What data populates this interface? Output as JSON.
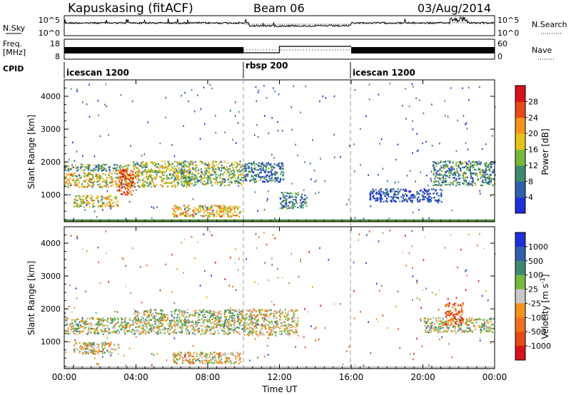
{
  "header": {
    "station": "Kapuskasing (fitACF)",
    "beam": "Beam 06",
    "date": "03/Aug/2014"
  },
  "top_panels": {
    "nsky_label": "N.Sky",
    "nsky_top_tick": "10^5",
    "nsky_bottom_tick": "10^0",
    "nsearch_label": "N.Search",
    "freq_label": "Freq.",
    "freq_unit": "[MHz]",
    "freq_top_tick": "18",
    "freq_bottom_tick": "8",
    "nave_label": "Nave",
    "nave_top_tick": "60",
    "nave_bottom_tick": "0",
    "cpid_label": "CPID",
    "cpid_segments": [
      "icescan 1200",
      "rbsp 200",
      "icescan 1200"
    ]
  },
  "chart_data": [
    {
      "type": "heatmap",
      "name": "power-panel",
      "ylabel": "Slant Range [km]",
      "y_ticks": [
        "1000",
        "2000",
        "3000",
        "4000"
      ],
      "ylim": [
        180,
        4500
      ],
      "xlim": [
        0,
        24
      ],
      "colorbar_label": "Power [dB]",
      "colorbar_ticks": [
        "4",
        "8",
        "12",
        "16",
        "20",
        "24",
        "28"
      ],
      "colors": [
        "#1f2fd8",
        "#2e5fa8",
        "#3e8a6e",
        "#78b83a",
        "#e8c21a",
        "#f5941d",
        "#e84a17",
        "#d8121b"
      ],
      "echo_regions": [
        {
          "t0": 0.0,
          "t1": 4.0,
          "r0": 1250,
          "r1": 1700,
          "level": 0.55
        },
        {
          "t0": 0.0,
          "t1": 3.6,
          "r0": 1750,
          "r1": 1950,
          "level": 0.35
        },
        {
          "t0": 3.0,
          "t1": 3.8,
          "r0": 1000,
          "r1": 1800,
          "level": 0.85
        },
        {
          "t0": 0.5,
          "t1": 3.0,
          "r0": 650,
          "r1": 1000,
          "level": 0.55
        },
        {
          "t0": 3.8,
          "t1": 10.0,
          "r0": 1700,
          "r1": 2050,
          "level": 0.45
        },
        {
          "t0": 4.0,
          "t1": 7.0,
          "r0": 1250,
          "r1": 1750,
          "level": 0.5
        },
        {
          "t0": 6.5,
          "t1": 10.0,
          "r0": 1300,
          "r1": 1700,
          "level": 0.4
        },
        {
          "t0": 6.0,
          "t1": 9.8,
          "r0": 350,
          "r1": 700,
          "level": 0.6
        },
        {
          "t0": 10.0,
          "t1": 12.2,
          "r0": 1400,
          "r1": 2000,
          "level": 0.25
        },
        {
          "t0": 12.0,
          "t1": 13.5,
          "r0": 600,
          "r1": 1100,
          "level": 0.25
        },
        {
          "t0": 17.0,
          "t1": 21.0,
          "r0": 800,
          "r1": 1200,
          "level": 0.1
        },
        {
          "t0": 20.5,
          "t1": 24.0,
          "r0": 1300,
          "r1": 2050,
          "level": 0.3
        }
      ]
    },
    {
      "type": "heatmap",
      "name": "velocity-panel",
      "ylabel": "Slant Range [km]",
      "y_ticks": [
        "1000",
        "2000",
        "3000",
        "4000"
      ],
      "ylim": [
        180,
        4500
      ],
      "xlim": [
        0,
        24
      ],
      "x_ticks": [
        "00:00",
        "04:00",
        "08:00",
        "12:00",
        "16:00",
        "20:00",
        "00:00"
      ],
      "xlabel": "Time UT",
      "colorbar_label": "Velocity [m s^-1]",
      "colorbar_ticks": [
        "1000",
        "500",
        "100",
        "25",
        "-25",
        "-100",
        "-500",
        "-1000"
      ],
      "colors": [
        "#1f2fd8",
        "#2e5fa8",
        "#3e8a6e",
        "#78b83a",
        "#c8c8c8",
        "#f5941d",
        "#f07020",
        "#e84a17",
        "#d8121b"
      ],
      "echo_regions": [
        {
          "t0": 0.0,
          "t1": 4.0,
          "r0": 1250,
          "r1": 1750,
          "level": 0.45
        },
        {
          "t0": 0.5,
          "t1": 3.0,
          "r0": 650,
          "r1": 1000,
          "level": 0.5
        },
        {
          "t0": 3.8,
          "t1": 10.0,
          "r0": 1650,
          "r1": 2000,
          "level": 0.45
        },
        {
          "t0": 4.0,
          "t1": 10.0,
          "r0": 1250,
          "r1": 1700,
          "level": 0.45
        },
        {
          "t0": 6.0,
          "t1": 9.8,
          "r0": 350,
          "r1": 700,
          "level": 0.55
        },
        {
          "t0": 10.0,
          "t1": 13.0,
          "r0": 1200,
          "r1": 2000,
          "level": 0.5
        },
        {
          "t0": 20.0,
          "t1": 24.0,
          "r0": 1300,
          "r1": 1750,
          "level": 0.45
        },
        {
          "t0": 21.2,
          "t1": 22.2,
          "r0": 1550,
          "r1": 2200,
          "level": 0.8
        }
      ]
    }
  ],
  "cpid_boundaries_hours": [
    10,
    16
  ]
}
